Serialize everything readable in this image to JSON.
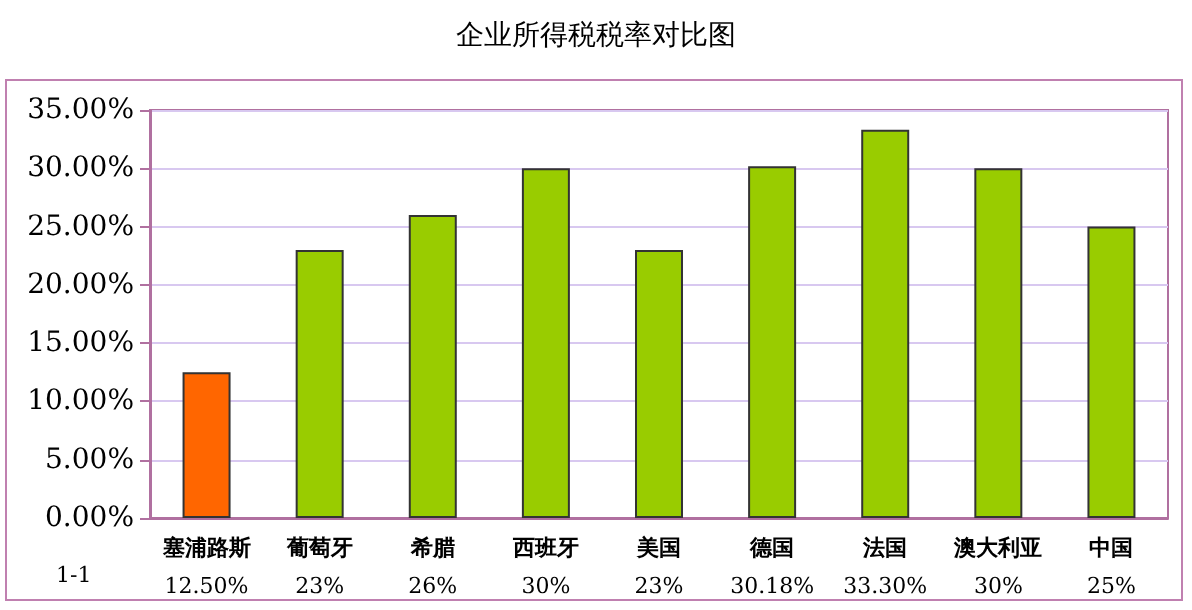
{
  "chart_data": {
    "type": "bar",
    "title": "企业所得税税率对比图",
    "categories": [
      "塞浦路斯",
      "葡萄牙",
      "希腊",
      "西班牙",
      "美国",
      "德国",
      "法国",
      "澳大利亚",
      "中国"
    ],
    "series": [
      {
        "name": "1-1",
        "colors": [
          "#ff6600",
          "#99cc00",
          "#99cc00",
          "#99cc00",
          "#99cc00",
          "#99cc00",
          "#99cc00",
          "#99cc00",
          "#99cc00"
        ],
        "values": [
          12.5,
          23,
          26,
          30,
          23,
          30.18,
          33.3,
          30,
          25
        ],
        "value_labels": [
          "12.50%",
          "23%",
          "26%",
          "30%",
          "23%",
          "30.18%",
          "33.30%",
          "30%",
          "25%"
        ]
      }
    ],
    "ylim": [
      0,
      35
    ],
    "yticks": [
      {
        "value": 0,
        "label": "0.00%"
      },
      {
        "value": 5,
        "label": "5.00%"
      },
      {
        "value": 10,
        "label": "10.00%"
      },
      {
        "value": 15,
        "label": "15.00%"
      },
      {
        "value": 20,
        "label": "20.00%"
      },
      {
        "value": 25,
        "label": "25.00%"
      },
      {
        "value": 30,
        "label": "30.00%"
      },
      {
        "value": 35,
        "label": "35.00%"
      }
    ],
    "grid": "y",
    "legend": false
  }
}
